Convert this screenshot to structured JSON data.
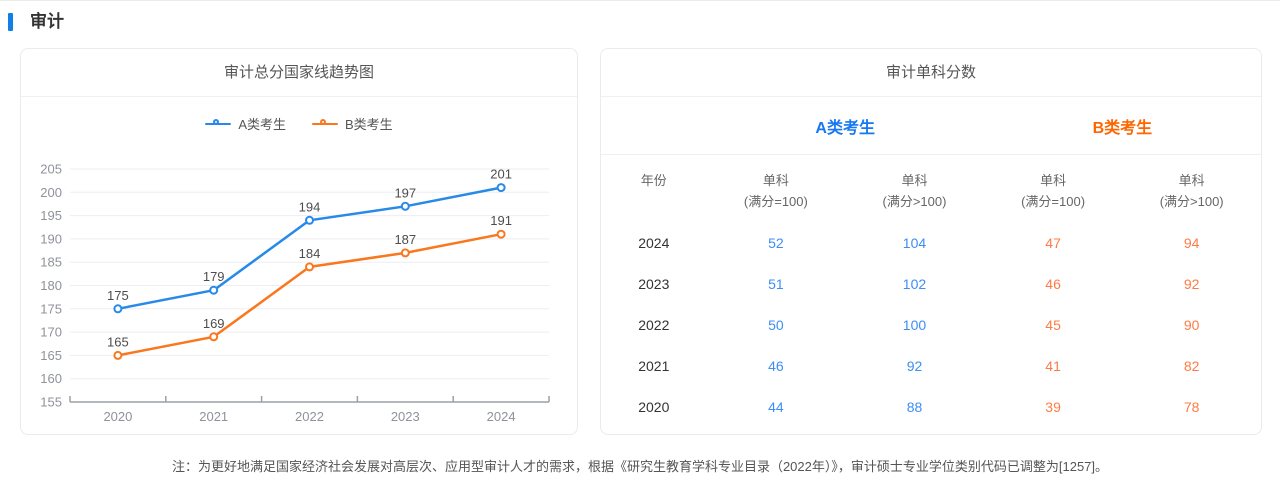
{
  "page": {
    "title": "审计",
    "accent_color": "#1080e8",
    "note": "注：为更好地满足国家经济社会发展对高层次、应用型审计人才的需求，根据《研究生教育学科专业目录（2022年）》，审计硕士专业学位类别代码已调整为[1257]。"
  },
  "chart_data": {
    "type": "line",
    "title": "审计总分国家线趋势图",
    "categories": [
      "2020",
      "2021",
      "2022",
      "2023",
      "2024"
    ],
    "series": [
      {
        "name": "A类考生",
        "color": "#2789e8",
        "values": [
          175,
          179,
          194,
          197,
          201
        ]
      },
      {
        "name": "B类考生",
        "color": "#f9771d",
        "values": [
          165,
          169,
          184,
          187,
          191
        ]
      }
    ],
    "xlabel": "",
    "ylabel": "",
    "ylim": [
      155,
      205
    ],
    "ytick_step": 5,
    "grid": true,
    "legend_position": "top",
    "marker": "hollow-circle",
    "point_labels": true
  },
  "score_table": {
    "title": "审计单科分数",
    "groups": [
      {
        "label": "A类考生",
        "color": "#1778f2"
      },
      {
        "label": "B类考生",
        "color": "#ff6600"
      }
    ],
    "value_colors": [
      "#3d8df5",
      "#3d8df5",
      "#ff7b45",
      "#ff7b45"
    ],
    "columns": [
      {
        "line1": "年份",
        "line2": ""
      },
      {
        "line1": "单科",
        "line2": "(满分=100)"
      },
      {
        "line1": "单科",
        "line2": "(满分>100)"
      },
      {
        "line1": "单科",
        "line2": "(满分=100)"
      },
      {
        "line1": "单科",
        "line2": "(满分>100)"
      }
    ],
    "rows": [
      {
        "year": "2024",
        "values": [
          "52",
          "104",
          "47",
          "94"
        ]
      },
      {
        "year": "2023",
        "values": [
          "51",
          "102",
          "46",
          "92"
        ]
      },
      {
        "year": "2022",
        "values": [
          "50",
          "100",
          "45",
          "90"
        ]
      },
      {
        "year": "2021",
        "values": [
          "46",
          "92",
          "41",
          "82"
        ]
      },
      {
        "year": "2020",
        "values": [
          "44",
          "88",
          "39",
          "78"
        ]
      }
    ]
  }
}
